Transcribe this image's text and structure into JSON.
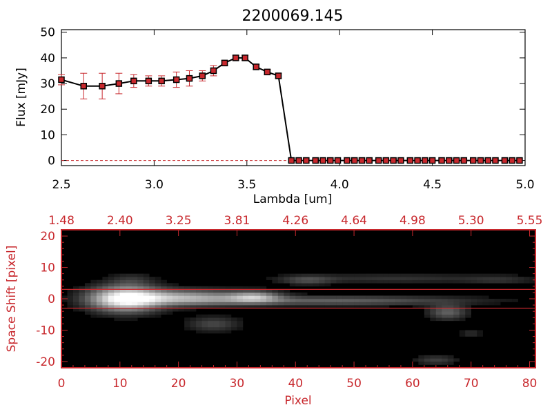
{
  "chart_data": [
    {
      "type": "line",
      "title": "2200069.145",
      "xlabel": "Lambda [um]",
      "ylabel": "Flux [mJy]",
      "xlim": [
        2.5,
        5.0
      ],
      "ylim": [
        -2,
        51
      ],
      "x_ticks": [
        "2.5",
        "3.0",
        "3.5",
        "4.0",
        "4.5",
        "5.0"
      ],
      "x_tick_values": [
        2.5,
        3.0,
        3.5,
        4.0,
        4.5,
        5.0
      ],
      "y_ticks": [
        "0",
        "10",
        "20",
        "30",
        "40",
        "50"
      ],
      "y_tick_values": [
        0,
        10,
        20,
        30,
        40,
        50
      ],
      "line_color": "#000000",
      "marker_color": "#c8282d",
      "error_color": "#c8282d",
      "zero_line_color": "#c8282d",
      "series": [
        {
          "x": [
            2.5,
            2.62,
            2.72,
            2.81,
            2.89,
            2.97,
            3.04,
            3.12,
            3.19,
            3.26,
            3.32,
            3.38,
            3.44,
            3.49,
            3.55,
            3.61,
            3.67,
            3.74,
            3.78,
            3.82,
            3.87,
            3.91,
            3.95,
            3.99,
            4.04,
            4.08,
            4.12,
            4.16,
            4.21,
            4.25,
            4.29,
            4.33,
            4.38,
            4.42,
            4.46,
            4.5,
            4.55,
            4.59,
            4.63,
            4.67,
            4.72,
            4.76,
            4.8,
            4.84,
            4.89,
            4.93,
            4.97
          ],
          "y": [
            31.5,
            29,
            29,
            30,
            31,
            31,
            31,
            31.5,
            32,
            33,
            35,
            38,
            40,
            40,
            36.5,
            34.5,
            33,
            0,
            0,
            0,
            0,
            0,
            0,
            0,
            0,
            0,
            0,
            0,
            0,
            0,
            0,
            0,
            0,
            0,
            0,
            0,
            0,
            0,
            0,
            0,
            0,
            0,
            0,
            0,
            0,
            0,
            0
          ],
          "err": [
            2,
            5,
            5,
            4,
            2.5,
            2,
            2,
            3,
            3,
            2,
            2,
            1,
            1,
            1,
            1,
            1,
            1,
            0,
            0,
            0,
            0,
            0,
            0,
            0,
            0,
            0,
            0,
            0,
            0,
            0,
            0,
            0,
            0,
            0,
            0,
            0,
            0,
            0,
            0,
            0,
            0,
            0,
            0,
            0,
            0,
            0,
            0
          ]
        }
      ]
    },
    {
      "type": "heatmap",
      "xlabel": "Pixel",
      "ylabel": "Space Shift [pixel]",
      "xlim": [
        0,
        81
      ],
      "ylim": [
        -22,
        22
      ],
      "x_ticks": [
        "0",
        "10",
        "20",
        "30",
        "40",
        "50",
        "60",
        "70",
        "80"
      ],
      "x_tick_values": [
        0,
        10,
        20,
        30,
        40,
        50,
        60,
        70,
        80
      ],
      "y_ticks": [
        "-20",
        "-10",
        "0",
        "10",
        "20"
      ],
      "y_tick_values": [
        -20,
        -10,
        0,
        10,
        20
      ],
      "top_ticks": [
        "1.48",
        "2.40",
        "3.25",
        "3.81",
        "4.26",
        "4.64",
        "4.98",
        "5.30",
        "5.55"
      ],
      "top_tick_positions": [
        0,
        10,
        20,
        30,
        40,
        50,
        60,
        70,
        80
      ],
      "aperture_lines": [
        3,
        -3
      ],
      "axis_color": "#c8282d",
      "colormap": "grayscale",
      "blobs": [
        {
          "x": 11,
          "y": 0,
          "sx": 4,
          "sy": 2.6,
          "v": 1.0
        },
        {
          "x": 21,
          "y": 0.4,
          "sx": 7,
          "sy": 1.6,
          "v": 0.6
        },
        {
          "x": 33,
          "y": 0.6,
          "sx": 3,
          "sy": 1.2,
          "v": 0.55
        },
        {
          "x": 46,
          "y": -0.6,
          "sx": 16,
          "sy": 1.0,
          "v": 0.3
        },
        {
          "x": 66,
          "y": -4.2,
          "sx": 2.2,
          "sy": 1.6,
          "v": 0.3
        },
        {
          "x": 26,
          "y": -8,
          "sx": 3,
          "sy": 1.6,
          "v": 0.2
        },
        {
          "x": 64,
          "y": -19.5,
          "sx": 2.5,
          "sy": 1.0,
          "v": 0.17
        },
        {
          "x": 42,
          "y": 6,
          "sx": 3,
          "sy": 1.0,
          "v": 0.2
        },
        {
          "x": 57,
          "y": 6.5,
          "sx": 12,
          "sy": 1.0,
          "v": 0.13
        },
        {
          "x": 12,
          "y": 6,
          "sx": 2.5,
          "sy": 1.5,
          "v": 0.12
        },
        {
          "x": 70,
          "y": -11,
          "sx": 1.2,
          "sy": 0.8,
          "v": 0.12
        },
        {
          "x": 75,
          "y": 6,
          "sx": 4,
          "sy": 1.0,
          "v": 0.1
        }
      ]
    }
  ]
}
